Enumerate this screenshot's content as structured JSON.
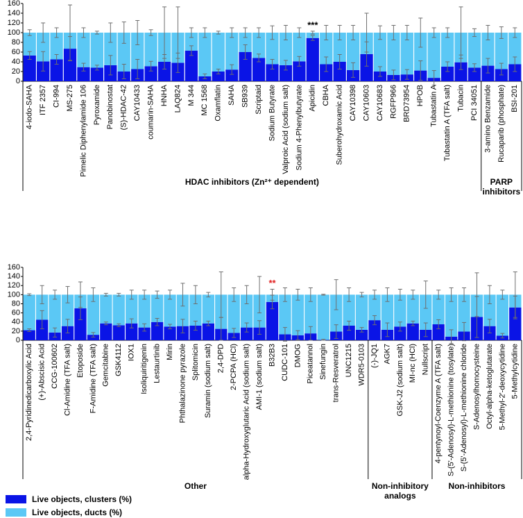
{
  "chart_data": [
    {
      "type": "bar",
      "stacked": true,
      "ylim": [
        0,
        160
      ],
      "yticks": [
        0,
        20,
        40,
        60,
        80,
        100,
        120,
        140,
        160
      ],
      "groups": [
        {
          "label": "HDAC inhibitors (Zn²⁺ dependent)",
          "categories": [
            "4-iodo-SAHA",
            "ITF 2357",
            "CI-994",
            "MS-275",
            "Pimelic Diphenylamide 106",
            "Pyroxamide",
            "Panobinostat",
            "(S)-HDAC-42",
            "CAY10433",
            "coumarin-SAHA",
            "HNHA",
            "LAQ824",
            "M 344",
            "MC 1568",
            "Oxamflatin",
            "SAHA",
            "SB939",
            "Scriptaid",
            "Sodium Butyrate",
            "Valproic Acid (sodium salt)",
            "Sodium 4-Phenylbutyrate",
            "Apicidin",
            "CBHA",
            "Suberohydroxamic Acid",
            "CAY10398",
            "CAY10603",
            "CAY10683",
            "RGFP966",
            "BRD73954",
            "HPOB",
            "Tubastatin A",
            "Tubastatin A (TFA salt)",
            "Tubacin",
            "PCI 34051"
          ]
        },
        {
          "label": "PARP inhibitors",
          "categories": [
            "3-amino Benzamide",
            "Rucaparib (phosphate)",
            "BSI-201"
          ]
        }
      ],
      "series": [
        {
          "color": "#0a14e6",
          "values": [
            53,
            41,
            45,
            67,
            29,
            28,
            33,
            20,
            25,
            31,
            40,
            38,
            63,
            10,
            20,
            24,
            60,
            48,
            35,
            33,
            41,
            89,
            35,
            40,
            23,
            56,
            20,
            13,
            14,
            22,
            7,
            30,
            39,
            28,
            32,
            25,
            35
          ],
          "errors": [
            8,
            20,
            10,
            25,
            8,
            5,
            20,
            15,
            20,
            10,
            15,
            20,
            10,
            5,
            5,
            10,
            15,
            8,
            10,
            10,
            10,
            5,
            15,
            15,
            15,
            25,
            10,
            10,
            10,
            20,
            15,
            10,
            15,
            8,
            15,
            12,
            15
          ]
        },
        {
          "color": "#5bc8f5",
          "values": [
            47,
            59,
            55,
            33,
            71,
            72,
            67,
            80,
            75,
            69,
            60,
            62,
            37,
            90,
            80,
            76,
            40,
            52,
            65,
            67,
            59,
            11,
            65,
            60,
            77,
            44,
            80,
            87,
            86,
            78,
            93,
            70,
            61,
            72,
            68,
            75,
            65
          ],
          "errors": [
            6,
            20,
            10,
            57,
            10,
            3,
            20,
            22,
            25,
            6,
            53,
            53,
            10,
            10,
            3,
            10,
            10,
            10,
            14,
            15,
            10,
            3,
            15,
            15,
            15,
            40,
            14,
            15,
            15,
            30,
            10,
            10,
            53,
            8,
            15,
            12,
            10
          ]
        }
      ],
      "annotations": [
        {
          "text": "***",
          "category": "Apicidin",
          "color": "#000000"
        }
      ]
    },
    {
      "type": "bar",
      "stacked": true,
      "ylim": [
        0,
        160
      ],
      "yticks": [
        0,
        20,
        40,
        60,
        80,
        100,
        120,
        140,
        160
      ],
      "groups": [
        {
          "label": "Other",
          "categories": [
            "2,4-Pyridinedicarboxylic Acid",
            "(+)-Abscisic Acid",
            "CCG-100602",
            "Cl-Amidine (TFA salt)",
            "Etoposide",
            "F-Amidine (TFA salt)",
            "Gemcitabine",
            "GSK4112",
            "IOX1",
            "Isoliquiritigenin",
            "Lestaurtinib",
            "Mirin",
            "Phthalazinone pyrazole",
            "Splitomicin",
            "Suramin (sodium salt)",
            "2,4-DPD",
            "2-PCPA (HCl)",
            "alpha-Hydroxyglutaric Acid (sodium salt)",
            "AMI-1 (sodium salt)",
            "B32B3",
            "CUDC-101",
            "DMOG",
            "Piceatannol",
            "Sinefungin",
            "trans-Resveratrol",
            "UNC1215",
            "WDR5-0103"
          ]
        },
        {
          "label": "Non-inhibitory analogs",
          "categories": [
            "(-)-JQ1",
            "AGK7",
            "GSK-J2 (sodium salt)",
            "MI-nc (HCl)",
            "Nullscript"
          ]
        },
        {
          "label": "Non-inhibitors",
          "categories": [
            "4-pentynoyl-Coenzyme A (TFA salt)",
            "S-(5'-Adenosyl)-L-methionine (tosylate)",
            "S-(5'-Adenosyl)-L-methionine chloride",
            "S-Adenosylhomocysteine",
            "Octyl-alpha-ketoglutarate",
            "5-Methyl-2'-deoxycytidine",
            "5-Methylcytidine"
          ]
        }
      ],
      "series": [
        {
          "name": "Live objects, clusters (%)",
          "color": "#0a14e6",
          "values": [
            22,
            45,
            17,
            31,
            70,
            12,
            37,
            33,
            37,
            28,
            40,
            30,
            31,
            32,
            37,
            25,
            16,
            28,
            28,
            84,
            13,
            11,
            15,
            1,
            19,
            32,
            23,
            44,
            23,
            30,
            37,
            23,
            35,
            8,
            19,
            51,
            31,
            10,
            72
          ],
          "errors": [
            3,
            20,
            10,
            15,
            25,
            5,
            3,
            3,
            10,
            8,
            8,
            5,
            15,
            10,
            5,
            25,
            10,
            10,
            15,
            15,
            15,
            10,
            15,
            1,
            15,
            10,
            5,
            10,
            15,
            10,
            5,
            15,
            10,
            15,
            20,
            45,
            15,
            5,
            25
          ]
        },
        {
          "name": "Live objects, ducts (%)",
          "color": "#5bc8f5",
          "values": [
            78,
            55,
            83,
            69,
            30,
            88,
            63,
            67,
            63,
            72,
            60,
            70,
            69,
            68,
            63,
            75,
            84,
            72,
            72,
            16,
            87,
            89,
            85,
            99,
            81,
            68,
            77,
            56,
            77,
            70,
            63,
            77,
            65,
            92,
            81,
            49,
            69,
            90,
            28
          ],
          "errors": [
            2,
            20,
            10,
            18,
            28,
            15,
            3,
            3,
            10,
            10,
            8,
            10,
            25,
            20,
            5,
            50,
            15,
            20,
            40,
            12,
            15,
            12,
            15,
            1,
            33,
            15,
            5,
            10,
            15,
            12,
            10,
            30,
            10,
            15,
            15,
            48,
            20,
            10,
            50
          ]
        }
      ],
      "annotations": [
        {
          "text": "**",
          "category": "B32B3",
          "color": "#e02020"
        }
      ]
    }
  ]
}
